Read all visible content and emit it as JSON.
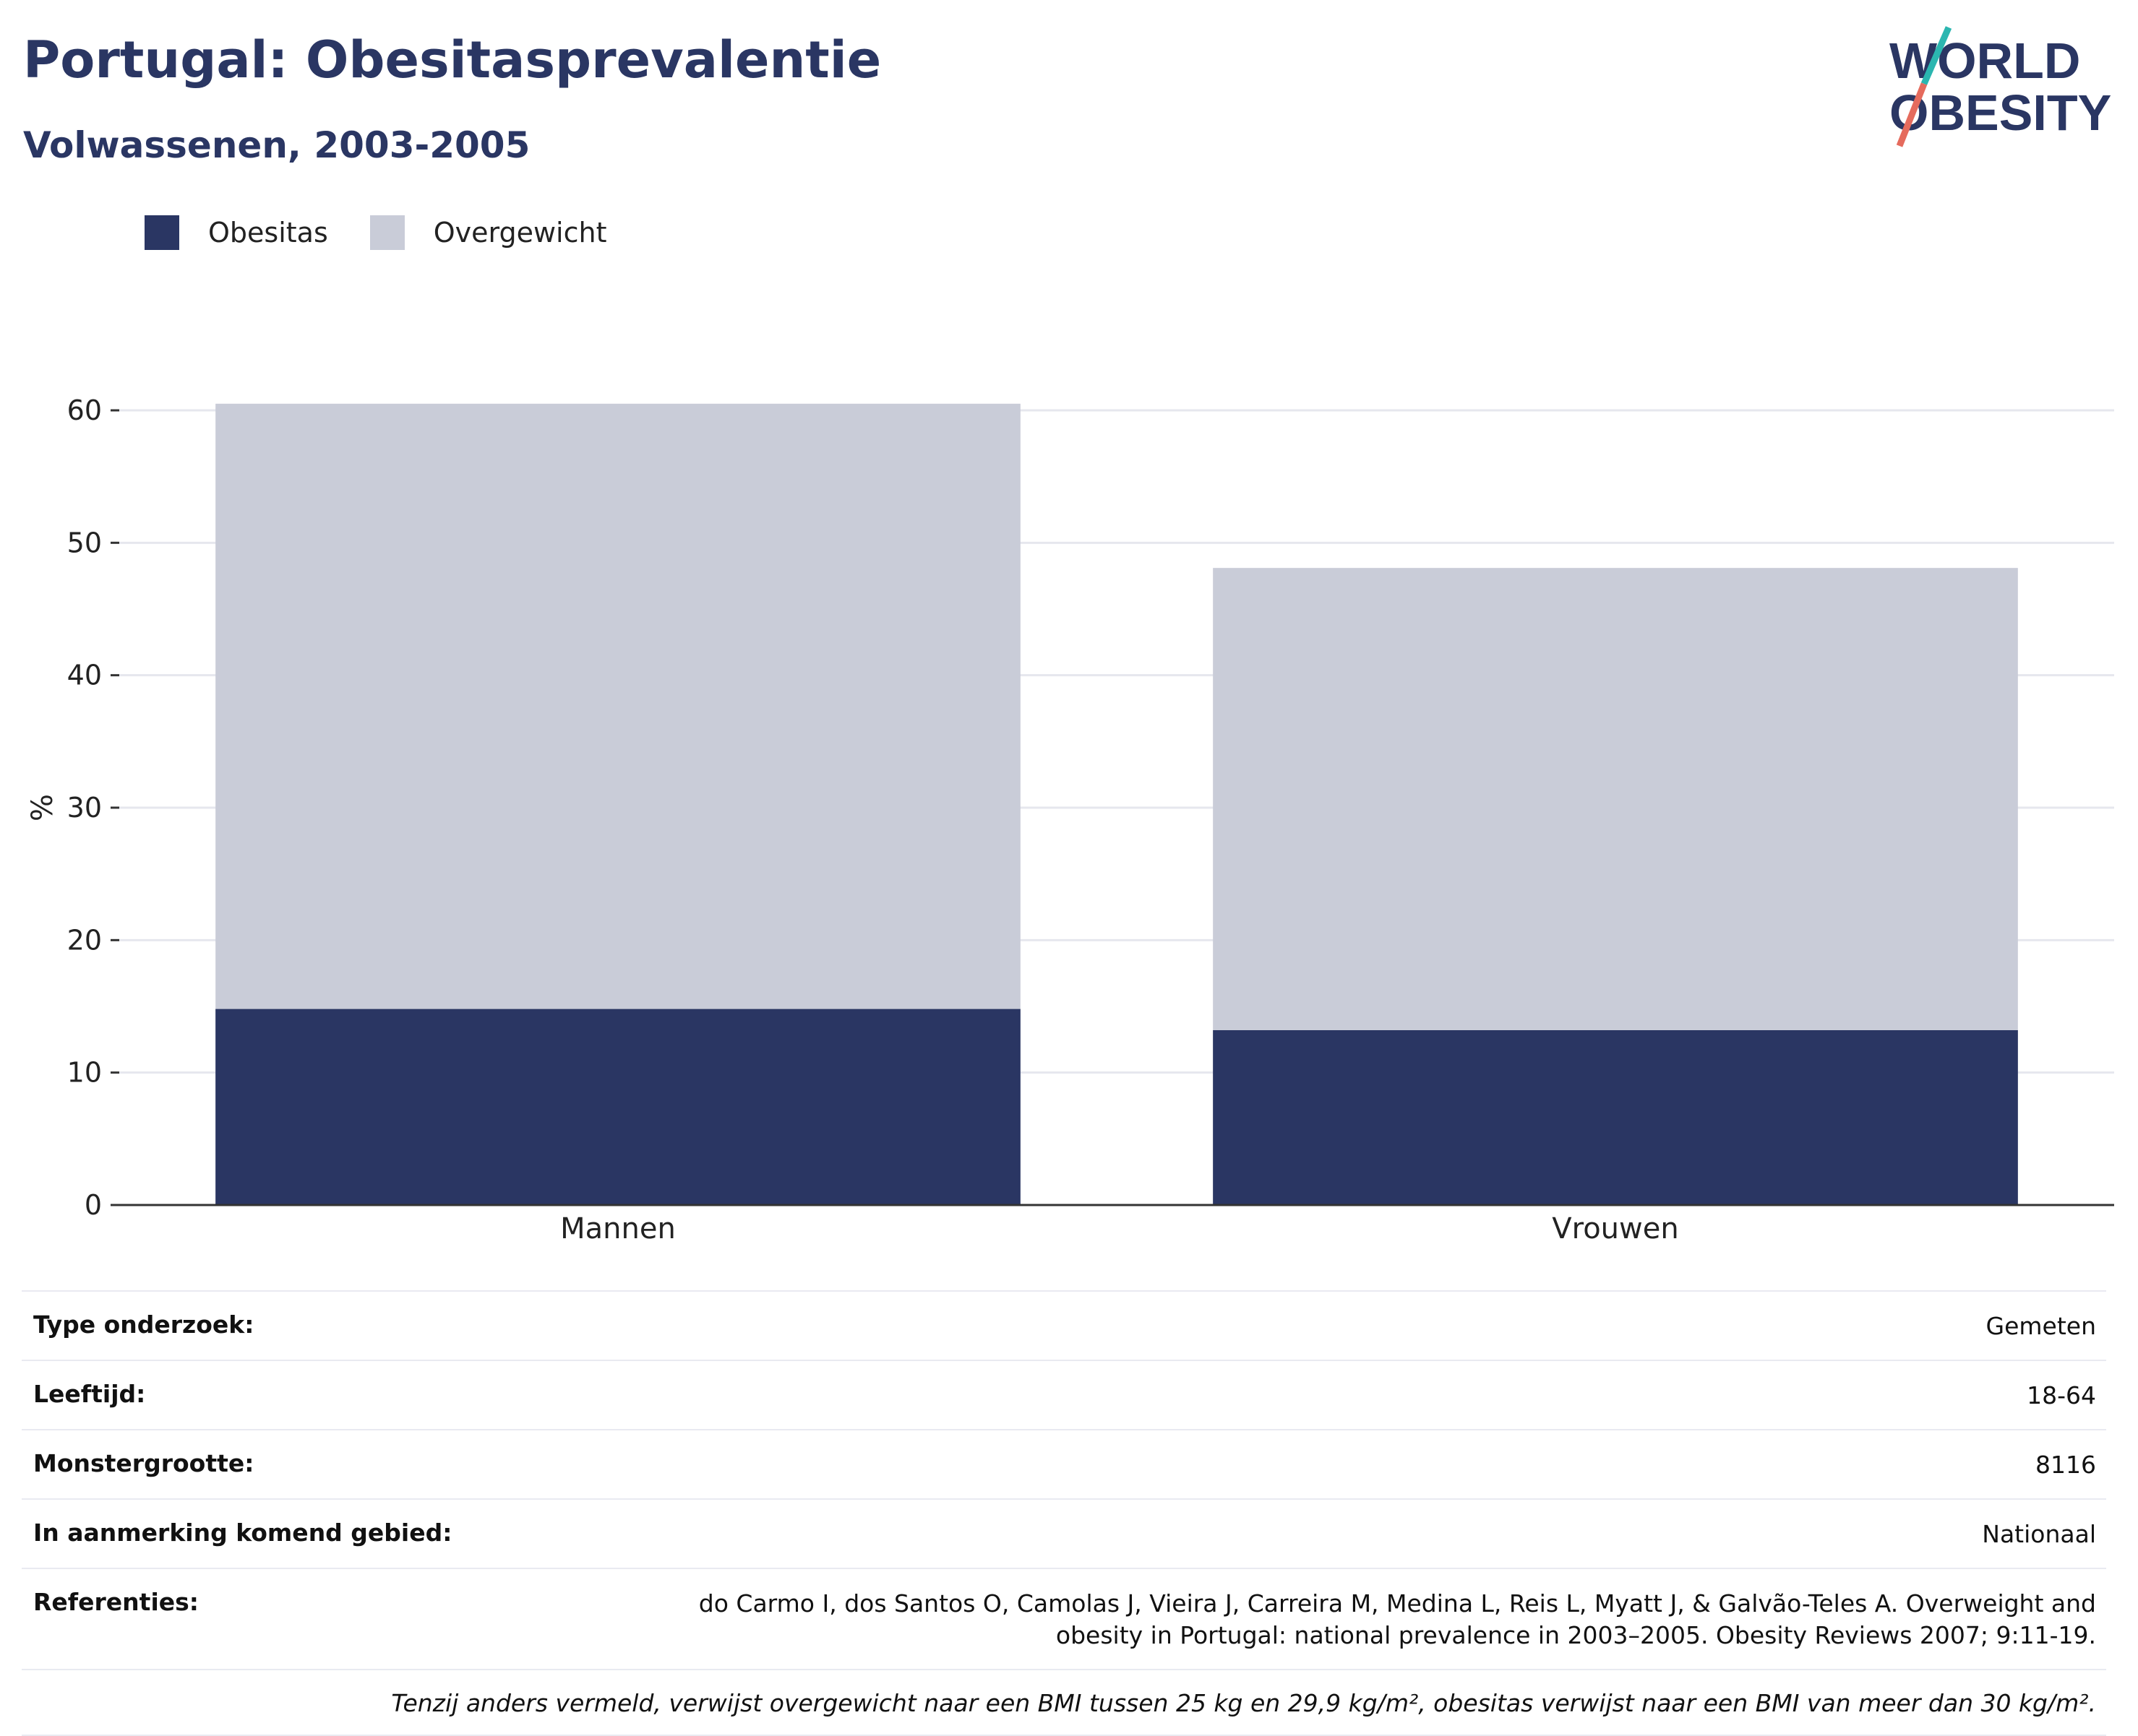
{
  "title": "Portugal: Obesitasprevalentie",
  "subtitle": "Volwassenen, 2003-2005",
  "logo": {
    "line1": "WORLD",
    "line2": "OBESITY"
  },
  "colors": {
    "obesitas": "#2a3663",
    "overgewicht": "#c9ccd8",
    "text": "#2a3663",
    "grid": "#e6e7ee"
  },
  "legend": [
    {
      "label": "Obesitas",
      "color": "#2a3663"
    },
    {
      "label": "Overgewicht",
      "color": "#c9ccd8"
    }
  ],
  "chart_data": {
    "type": "bar",
    "stacked": false,
    "overlay": true,
    "categories": [
      "Mannen",
      "Vrouwen"
    ],
    "series": [
      {
        "name": "Overgewicht",
        "values": [
          60.5,
          48.1
        ]
      },
      {
        "name": "Obesitas",
        "values": [
          14.8,
          13.2
        ]
      }
    ],
    "ylabel": "%",
    "ylim": [
      0,
      60
    ],
    "yticks": [
      0,
      10,
      20,
      30,
      40,
      50,
      60
    ],
    "grid": true,
    "legend_position": "top-left"
  },
  "info": {
    "rows": [
      {
        "key": "Type onderzoek:",
        "value": "Gemeten"
      },
      {
        "key": "Leeftijd:",
        "value": "18-64"
      },
      {
        "key": "Monstergrootte:",
        "value": "8116"
      },
      {
        "key": "In aanmerking komend gebied:",
        "value": "Nationaal"
      },
      {
        "key": "Referenties:",
        "value": "do Carmo I, dos Santos O, Camolas J, Vieira J, Carreira M, Medina L, Reis L, Myatt J, & Galvão-Teles A. Overweight and obesity in Portugal: national prevalence in 2003–2005. Obesity Reviews 2007; 9:11-19."
      }
    ],
    "note": "Tenzij anders vermeld, verwijst overgewicht naar een BMI tussen 25 kg en 29,9 kg/m², obesitas verwijst naar een BMI van meer dan 30 kg/m²."
  }
}
